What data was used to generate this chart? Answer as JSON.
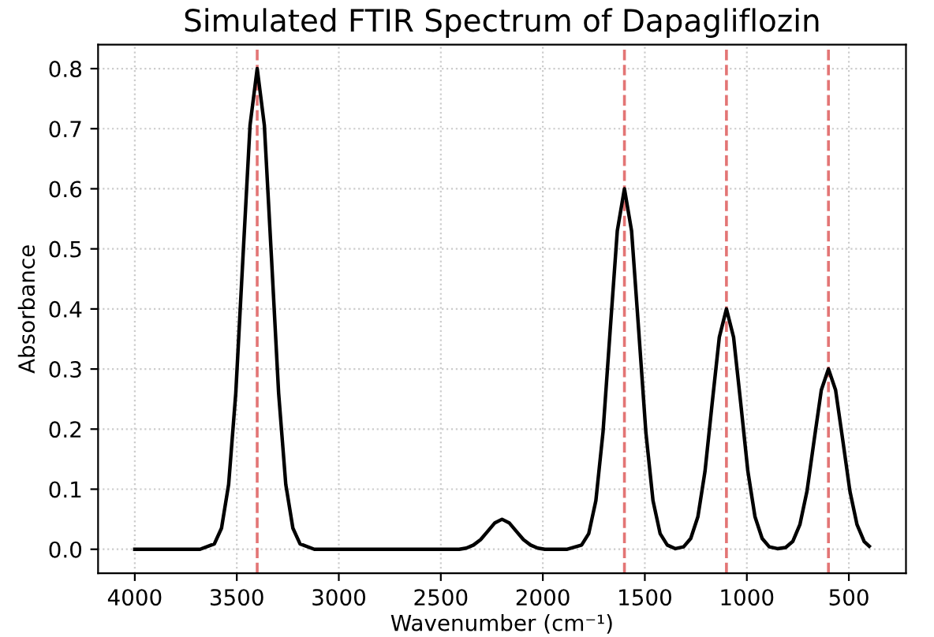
{
  "chart_data": {
    "type": "line",
    "title": "Simulated FTIR Spectrum of Dapagliflozin",
    "xlabel": "Wavenumber (cm⁻¹)",
    "ylabel": "Absorbance",
    "series": [
      {
        "color": "#000000",
        "x": [
          4000,
          3700,
          3680,
          3610,
          3575,
          3540,
          3505,
          3470,
          3435,
          3400,
          3365,
          3330,
          3295,
          3260,
          3225,
          3190,
          3120,
          2500,
          2410,
          2375,
          2340,
          2305,
          2270,
          2235,
          2200,
          2165,
          2130,
          2095,
          2060,
          2025,
          1990,
          1880,
          1810,
          1775,
          1740,
          1705,
          1670,
          1635,
          1600,
          1565,
          1530,
          1495,
          1460,
          1425,
          1390,
          1350,
          1310,
          1275,
          1240,
          1205,
          1170,
          1135,
          1100,
          1065,
          1030,
          995,
          960,
          925,
          890,
          850,
          810,
          775,
          740,
          705,
          670,
          635,
          600,
          565,
          530,
          495,
          460,
          425,
          400
        ],
        "values": [
          0,
          0,
          0,
          0.009,
          0.035,
          0.108,
          0.26,
          0.485,
          0.706,
          0.8,
          0.706,
          0.485,
          0.26,
          0.108,
          0.035,
          0.009,
          0,
          0,
          0,
          0.002,
          0.007,
          0.016,
          0.03,
          0.044,
          0.05,
          0.044,
          0.03,
          0.016,
          0.007,
          0.002,
          0,
          0,
          0.007,
          0.026,
          0.081,
          0.195,
          0.364,
          0.53,
          0.6,
          0.53,
          0.364,
          0.195,
          0.081,
          0.026,
          0.007,
          0.001,
          0.004,
          0.018,
          0.054,
          0.13,
          0.243,
          0.353,
          0.4,
          0.353,
          0.243,
          0.13,
          0.054,
          0.018,
          0.004,
          0.001,
          0.003,
          0.013,
          0.041,
          0.097,
          0.182,
          0.265,
          0.3,
          0.265,
          0.182,
          0.097,
          0.041,
          0.013,
          0.005
        ]
      }
    ],
    "ref_lines": [
      {
        "axis": "x",
        "value": 3400,
        "color": "#e06666",
        "line_style": "dashed"
      },
      {
        "axis": "x",
        "value": 1600,
        "color": "#e06666",
        "line_style": "dashed"
      },
      {
        "axis": "x",
        "value": 1100,
        "color": "#e06666",
        "line_style": "dashed"
      },
      {
        "axis": "x",
        "value": 600,
        "color": "#e06666",
        "line_style": "dashed"
      }
    ],
    "xlim": [
      4180,
      220
    ],
    "xticks": [
      4000,
      3500,
      3000,
      2500,
      2000,
      1500,
      1000,
      500
    ],
    "ylim": [
      -0.04,
      0.84
    ],
    "yticks": [
      {
        "value": 0,
        "label": "0.0"
      },
      0.1,
      0.2,
      0.3,
      0.4,
      0.5,
      0.6,
      0.7,
      0.8
    ],
    "grid": true,
    "marker": "none",
    "line_style": "solid",
    "legend": false
  }
}
